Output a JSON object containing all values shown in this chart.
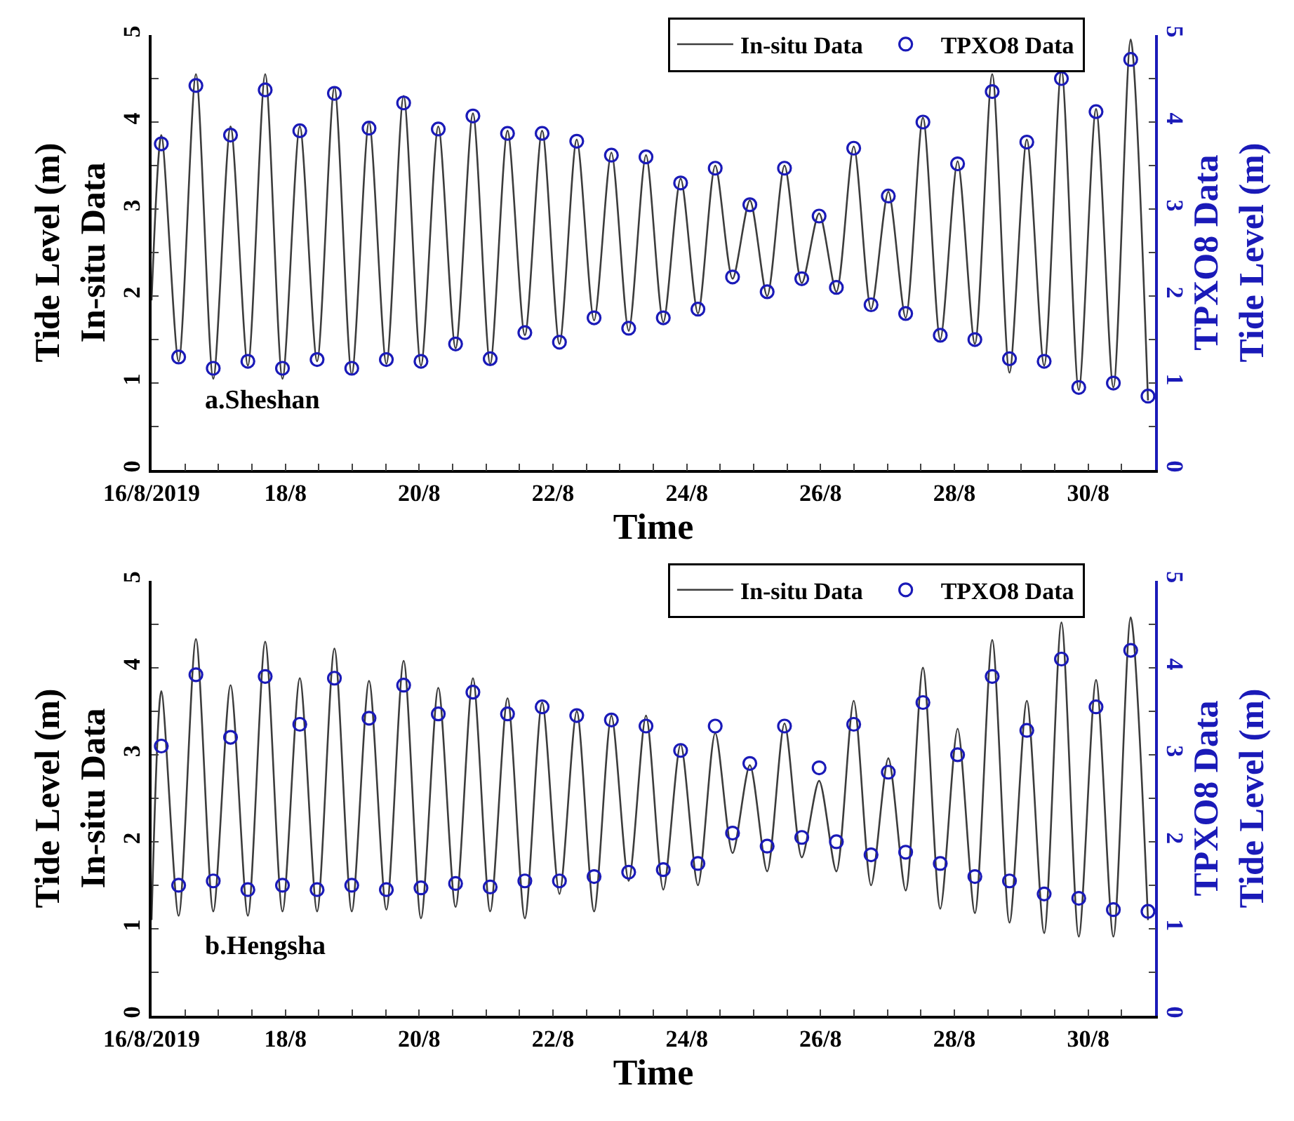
{
  "chart_data": [
    {
      "type": "line",
      "xlabel": "Time",
      "ylabel": "Tide Level (m)\nIn-situ Data",
      "y2label": "TPXO8 Data\nTide Level (m)",
      "annotations": [
        "a.Sheshan"
      ],
      "legend": "top right",
      "grid": false,
      "xlim": [
        "2019-08-16",
        "2019-08-31"
      ],
      "xticks": [
        {
          "value": "2019-08-16",
          "label": "16/8/2019"
        },
        {
          "value": "2019-08-16T12:00",
          "label": null
        },
        {
          "value": "2019-08-17",
          "label": null
        },
        {
          "value": "2019-08-17T12:00",
          "label": null
        },
        {
          "value": "2019-08-18",
          "label": "18/8"
        },
        {
          "value": "2019-08-18T12:00",
          "label": null
        },
        {
          "value": "2019-08-19",
          "label": null
        },
        {
          "value": "2019-08-19T12:00",
          "label": null
        },
        {
          "value": "2019-08-20",
          "label": "20/8"
        },
        {
          "value": "2019-08-20T12:00",
          "label": null
        },
        {
          "value": "2019-08-21",
          "label": null
        },
        {
          "value": "2019-08-21T12:00",
          "label": null
        },
        {
          "value": "2019-08-22",
          "label": "22/8"
        },
        {
          "value": "2019-08-22T12:00",
          "label": null
        },
        {
          "value": "2019-08-23",
          "label": null
        },
        {
          "value": "2019-08-23T12:00",
          "label": null
        },
        {
          "value": "2019-08-24",
          "label": "24/8"
        },
        {
          "value": "2019-08-24T12:00",
          "label": null
        },
        {
          "value": "2019-08-25",
          "label": null
        },
        {
          "value": "2019-08-25T12:00",
          "label": null
        },
        {
          "value": "2019-08-26",
          "label": "26/8"
        },
        {
          "value": "2019-08-26T12:00",
          "label": null
        },
        {
          "value": "2019-08-27",
          "label": null
        },
        {
          "value": "2019-08-27T12:00",
          "label": null
        },
        {
          "value": "2019-08-28",
          "label": "28/8"
        },
        {
          "value": "2019-08-28T12:00",
          "label": null
        },
        {
          "value": "2019-08-29",
          "label": null
        },
        {
          "value": "2019-08-29T12:00",
          "label": null
        },
        {
          "value": "2019-08-30",
          "label": "30/8"
        },
        {
          "value": "2019-08-30T12:00",
          "label": null
        }
      ],
      "ylim": [
        0,
        5
      ],
      "yticks": [
        0,
        {
          "value": 0.5,
          "label": null
        },
        1,
        {
          "value": 1.5,
          "label": null
        },
        2,
        {
          "value": 2.5,
          "label": null
        },
        3,
        {
          "value": 3.5,
          "label": null
        },
        4,
        {
          "value": 4.5,
          "label": null
        },
        5
      ],
      "y2lim": [
        0,
        5
      ],
      "y2ticks": [
        0,
        {
          "value": 0.5,
          "label": null
        },
        1,
        {
          "value": 1.5,
          "label": null
        },
        2,
        {
          "value": 2.5,
          "label": null
        },
        3,
        {
          "value": 3.5,
          "label": null
        },
        4,
        {
          "value": 4.5,
          "label": null
        },
        5
      ],
      "series": [
        {
          "name": "In-situ Data",
          "marker": "none",
          "color": "#3c3c3c",
          "x": [
            "2019-08-16T00:00",
            "2019-08-16T03:30",
            "2019-08-16T09:43",
            "2019-08-16T15:55",
            "2019-08-16T22:08",
            "2019-08-17T04:20",
            "2019-08-17T10:33",
            "2019-08-17T16:46",
            "2019-08-17T22:58",
            "2019-08-18T05:11",
            "2019-08-18T11:23",
            "2019-08-18T17:36",
            "2019-08-18T23:49",
            "2019-08-19T06:01",
            "2019-08-19T12:14",
            "2019-08-19T18:26",
            "2019-08-20T00:39",
            "2019-08-20T06:52",
            "2019-08-20T13:04",
            "2019-08-20T19:17",
            "2019-08-21T01:29",
            "2019-08-21T07:42",
            "2019-08-21T13:55",
            "2019-08-21T20:07",
            "2019-08-22T02:20",
            "2019-08-22T08:32",
            "2019-08-22T14:45",
            "2019-08-22T20:58",
            "2019-08-23T03:10",
            "2019-08-23T09:23",
            "2019-08-23T15:35",
            "2019-08-23T21:48",
            "2019-08-24T04:01",
            "2019-08-24T10:13",
            "2019-08-24T16:26",
            "2019-08-24T22:38",
            "2019-08-25T04:51",
            "2019-08-25T11:04",
            "2019-08-25T17:16",
            "2019-08-25T23:29",
            "2019-08-26T05:41",
            "2019-08-26T11:54",
            "2019-08-26T18:07",
            "2019-08-27T00:19",
            "2019-08-27T06:32",
            "2019-08-27T12:44",
            "2019-08-27T18:57",
            "2019-08-28T01:10",
            "2019-08-28T07:22",
            "2019-08-28T13:35",
            "2019-08-28T19:47",
            "2019-08-29T02:00",
            "2019-08-29T08:13",
            "2019-08-29T14:25",
            "2019-08-29T20:38",
            "2019-08-30T02:50",
            "2019-08-30T09:03",
            "2019-08-30T15:16",
            "2019-08-30T21:28"
          ],
          "values": [
            1.95,
            3.85,
            1.25,
            4.55,
            1.05,
            3.95,
            1.2,
            4.55,
            1.05,
            3.95,
            1.25,
            4.4,
            1.1,
            4.0,
            1.22,
            4.3,
            1.2,
            3.95,
            1.4,
            4.1,
            1.22,
            3.9,
            1.55,
            3.9,
            1.45,
            3.8,
            1.72,
            3.65,
            1.6,
            3.62,
            1.7,
            3.35,
            1.8,
            3.5,
            2.2,
            3.1,
            2.0,
            3.5,
            2.15,
            2.95,
            2.05,
            3.72,
            1.85,
            3.2,
            1.75,
            4.05,
            1.5,
            3.55,
            1.45,
            4.55,
            1.12,
            3.8,
            1.2,
            4.6,
            0.92,
            4.15,
            0.95,
            4.95,
            0.8
          ]
        },
        {
          "name": "TPXO8 Data",
          "type": "scatter",
          "marker": "circle",
          "axis": "y2",
          "color": "#1a1ab8",
          "x": [
            "2019-08-16T03:30",
            "2019-08-16T09:43",
            "2019-08-16T15:55",
            "2019-08-16T22:08",
            "2019-08-17T04:20",
            "2019-08-17T10:33",
            "2019-08-17T16:46",
            "2019-08-17T22:58",
            "2019-08-18T05:11",
            "2019-08-18T11:23",
            "2019-08-18T17:36",
            "2019-08-18T23:49",
            "2019-08-19T06:01",
            "2019-08-19T12:14",
            "2019-08-19T18:26",
            "2019-08-20T00:39",
            "2019-08-20T06:52",
            "2019-08-20T13:04",
            "2019-08-20T19:17",
            "2019-08-21T01:29",
            "2019-08-21T07:42",
            "2019-08-21T13:55",
            "2019-08-21T20:07",
            "2019-08-22T02:20",
            "2019-08-22T08:32",
            "2019-08-22T14:45",
            "2019-08-22T20:58",
            "2019-08-23T03:10",
            "2019-08-23T09:23",
            "2019-08-23T15:35",
            "2019-08-23T21:48",
            "2019-08-24T04:01",
            "2019-08-24T10:13",
            "2019-08-24T16:26",
            "2019-08-24T22:38",
            "2019-08-25T04:51",
            "2019-08-25T11:04",
            "2019-08-25T17:16",
            "2019-08-25T23:29",
            "2019-08-26T05:41",
            "2019-08-26T11:54",
            "2019-08-26T18:07",
            "2019-08-27T00:19",
            "2019-08-27T06:32",
            "2019-08-27T12:44",
            "2019-08-27T18:57",
            "2019-08-28T01:10",
            "2019-08-28T07:22",
            "2019-08-28T13:35",
            "2019-08-28T19:47",
            "2019-08-29T02:00",
            "2019-08-29T08:13",
            "2019-08-29T14:25",
            "2019-08-29T20:38",
            "2019-08-30T02:50",
            "2019-08-30T09:03",
            "2019-08-30T15:16",
            "2019-08-30T21:28"
          ],
          "values": [
            3.75,
            1.3,
            4.42,
            1.17,
            3.85,
            1.25,
            4.37,
            1.17,
            3.9,
            1.27,
            4.33,
            1.17,
            3.93,
            1.27,
            4.22,
            1.25,
            3.92,
            1.45,
            4.07,
            1.28,
            3.87,
            1.58,
            3.87,
            1.47,
            3.78,
            1.75,
            3.62,
            1.63,
            3.6,
            1.75,
            3.3,
            1.85,
            3.47,
            2.22,
            3.05,
            2.05,
            3.47,
            2.2,
            2.92,
            2.1,
            3.7,
            1.9,
            3.15,
            1.8,
            4.0,
            1.55,
            3.52,
            1.5,
            4.35,
            1.28,
            3.77,
            1.25,
            4.5,
            0.95,
            4.12,
            1.0,
            4.72,
            0.85
          ]
        }
      ]
    },
    {
      "type": "line",
      "xlabel": "Time",
      "ylabel": "Tide Level (m)\nIn-situ Data",
      "y2label": "TPXO8 Data\nTide Level (m)",
      "annotations": [
        "b.Hengsha"
      ],
      "legend": "top right",
      "grid": false,
      "xlim": [
        "2019-08-16",
        "2019-08-31"
      ],
      "xticks": [
        {
          "value": "2019-08-16",
          "label": "16/8/2019"
        },
        {
          "value": "2019-08-16T12:00",
          "label": null
        },
        {
          "value": "2019-08-17",
          "label": null
        },
        {
          "value": "2019-08-17T12:00",
          "label": null
        },
        {
          "value": "2019-08-18",
          "label": "18/8"
        },
        {
          "value": "2019-08-18T12:00",
          "label": null
        },
        {
          "value": "2019-08-19",
          "label": null
        },
        {
          "value": "2019-08-19T12:00",
          "label": null
        },
        {
          "value": "2019-08-20",
          "label": "20/8"
        },
        {
          "value": "2019-08-20T12:00",
          "label": null
        },
        {
          "value": "2019-08-21",
          "label": null
        },
        {
          "value": "2019-08-21T12:00",
          "label": null
        },
        {
          "value": "2019-08-22",
          "label": "22/8"
        },
        {
          "value": "2019-08-22T12:00",
          "label": null
        },
        {
          "value": "2019-08-23",
          "label": null
        },
        {
          "value": "2019-08-23T12:00",
          "label": null
        },
        {
          "value": "2019-08-24",
          "label": "24/8"
        },
        {
          "value": "2019-08-24T12:00",
          "label": null
        },
        {
          "value": "2019-08-25",
          "label": null
        },
        {
          "value": "2019-08-25T12:00",
          "label": null
        },
        {
          "value": "2019-08-26",
          "label": "26/8"
        },
        {
          "value": "2019-08-26T12:00",
          "label": null
        },
        {
          "value": "2019-08-27",
          "label": null
        },
        {
          "value": "2019-08-27T12:00",
          "label": null
        },
        {
          "value": "2019-08-28",
          "label": "28/8"
        },
        {
          "value": "2019-08-28T12:00",
          "label": null
        },
        {
          "value": "2019-08-29",
          "label": null
        },
        {
          "value": "2019-08-29T12:00",
          "label": null
        },
        {
          "value": "2019-08-30",
          "label": "30/8"
        },
        {
          "value": "2019-08-30T12:00",
          "label": null
        }
      ],
      "ylim": [
        0,
        5
      ],
      "yticks": [
        0,
        {
          "value": 0.5,
          "label": null
        },
        1,
        {
          "value": 1.5,
          "label": null
        },
        2,
        {
          "value": 2.5,
          "label": null
        },
        3,
        {
          "value": 3.5,
          "label": null
        },
        4,
        {
          "value": 4.5,
          "label": null
        },
        5
      ],
      "y2lim": [
        0,
        5
      ],
      "y2ticks": [
        0,
        {
          "value": 0.5,
          "label": null
        },
        1,
        {
          "value": 1.5,
          "label": null
        },
        2,
        {
          "value": 2.5,
          "label": null
        },
        3,
        {
          "value": 3.5,
          "label": null
        },
        4,
        {
          "value": 4.5,
          "label": null
        },
        5
      ],
      "series": [
        {
          "name": "In-situ Data",
          "marker": "none",
          "color": "#3c3c3c",
          "x": [
            "2019-08-16T00:00",
            "2019-08-16T03:30",
            "2019-08-16T09:43",
            "2019-08-16T15:55",
            "2019-08-16T22:08",
            "2019-08-17T04:20",
            "2019-08-17T10:33",
            "2019-08-17T16:46",
            "2019-08-17T22:58",
            "2019-08-18T05:11",
            "2019-08-18T11:23",
            "2019-08-18T17:36",
            "2019-08-18T23:49",
            "2019-08-19T06:01",
            "2019-08-19T12:14",
            "2019-08-19T18:26",
            "2019-08-20T00:39",
            "2019-08-20T06:52",
            "2019-08-20T13:04",
            "2019-08-20T19:17",
            "2019-08-21T01:29",
            "2019-08-21T07:42",
            "2019-08-21T13:55",
            "2019-08-21T20:07",
            "2019-08-22T02:20",
            "2019-08-22T08:32",
            "2019-08-22T14:45",
            "2019-08-22T20:58",
            "2019-08-23T03:10",
            "2019-08-23T09:23",
            "2019-08-23T15:35",
            "2019-08-23T21:48",
            "2019-08-24T04:01",
            "2019-08-24T10:13",
            "2019-08-24T16:26",
            "2019-08-24T22:38",
            "2019-08-25T04:51",
            "2019-08-25T11:04",
            "2019-08-25T17:16",
            "2019-08-25T23:29",
            "2019-08-26T05:41",
            "2019-08-26T11:54",
            "2019-08-26T18:07",
            "2019-08-27T00:19",
            "2019-08-27T06:32",
            "2019-08-27T12:44",
            "2019-08-27T18:57",
            "2019-08-28T01:10",
            "2019-08-28T07:22",
            "2019-08-28T13:35",
            "2019-08-28T19:47",
            "2019-08-29T02:00",
            "2019-08-29T08:13",
            "2019-08-29T14:25",
            "2019-08-29T20:38",
            "2019-08-30T02:50",
            "2019-08-30T09:03",
            "2019-08-30T15:16",
            "2019-08-30T21:28"
          ],
          "values": [
            1.1,
            3.73,
            1.15,
            4.33,
            1.2,
            3.8,
            1.15,
            4.3,
            1.2,
            3.88,
            1.2,
            4.22,
            1.2,
            3.85,
            1.22,
            4.08,
            1.12,
            3.77,
            1.25,
            3.88,
            1.2,
            3.65,
            1.12,
            3.6,
            1.4,
            3.5,
            1.2,
            3.45,
            1.55,
            3.45,
            1.45,
            3.12,
            1.5,
            3.25,
            1.87,
            2.88,
            1.66,
            3.36,
            1.82,
            2.7,
            1.66,
            3.62,
            1.5,
            2.96,
            1.44,
            4.0,
            1.23,
            3.3,
            1.18,
            4.32,
            1.07,
            3.62,
            0.95,
            4.52,
            0.91,
            3.86,
            0.91,
            4.58,
            1.1
          ]
        },
        {
          "name": "TPXO8 Data",
          "type": "scatter",
          "marker": "circle",
          "axis": "y2",
          "color": "#1a1ab8",
          "x": [
            "2019-08-16T03:30",
            "2019-08-16T09:43",
            "2019-08-16T15:55",
            "2019-08-16T22:08",
            "2019-08-17T04:20",
            "2019-08-17T10:33",
            "2019-08-17T16:46",
            "2019-08-17T22:58",
            "2019-08-18T05:11",
            "2019-08-18T11:23",
            "2019-08-18T17:36",
            "2019-08-18T23:49",
            "2019-08-19T06:01",
            "2019-08-19T12:14",
            "2019-08-19T18:26",
            "2019-08-20T00:39",
            "2019-08-20T06:52",
            "2019-08-20T13:04",
            "2019-08-20T19:17",
            "2019-08-21T01:29",
            "2019-08-21T07:42",
            "2019-08-21T13:55",
            "2019-08-21T20:07",
            "2019-08-22T02:20",
            "2019-08-22T08:32",
            "2019-08-22T14:45",
            "2019-08-22T20:58",
            "2019-08-23T03:10",
            "2019-08-23T09:23",
            "2019-08-23T15:35",
            "2019-08-23T21:48",
            "2019-08-24T04:01",
            "2019-08-24T10:13",
            "2019-08-24T16:26",
            "2019-08-24T22:38",
            "2019-08-25T04:51",
            "2019-08-25T11:04",
            "2019-08-25T17:16",
            "2019-08-25T23:29",
            "2019-08-26T05:41",
            "2019-08-26T11:54",
            "2019-08-26T18:07",
            "2019-08-27T00:19",
            "2019-08-27T06:32",
            "2019-08-27T12:44",
            "2019-08-27T18:57",
            "2019-08-28T01:10",
            "2019-08-28T07:22",
            "2019-08-28T13:35",
            "2019-08-28T19:47",
            "2019-08-29T02:00",
            "2019-08-29T08:13",
            "2019-08-29T14:25",
            "2019-08-29T20:38",
            "2019-08-30T02:50",
            "2019-08-30T09:03",
            "2019-08-30T15:16",
            "2019-08-30T21:28"
          ],
          "values": [
            3.1,
            1.5,
            3.92,
            1.55,
            3.2,
            1.45,
            3.9,
            1.5,
            3.35,
            1.45,
            3.88,
            1.5,
            3.42,
            1.45,
            3.8,
            1.47,
            3.47,
            1.52,
            3.72,
            1.48,
            3.47,
            1.55,
            3.55,
            1.55,
            3.45,
            1.6,
            3.4,
            1.65,
            3.33,
            1.68,
            3.05,
            1.75,
            3.33,
            2.1,
            2.9,
            1.95,
            3.33,
            2.05,
            2.85,
            2.0,
            3.35,
            1.85,
            2.8,
            1.88,
            3.6,
            1.75,
            3.0,
            1.6,
            3.9,
            1.55,
            3.28,
            1.4,
            4.1,
            1.35,
            3.55,
            1.22,
            4.2,
            1.2
          ]
        }
      ]
    }
  ]
}
